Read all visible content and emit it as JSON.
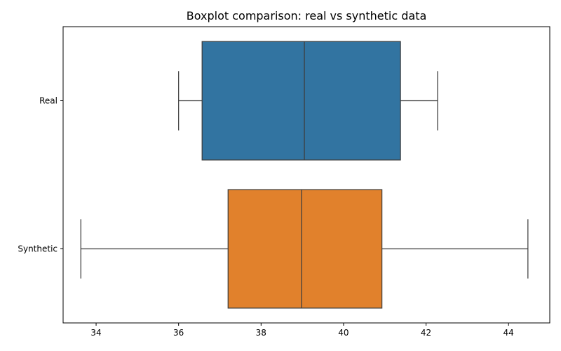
{
  "chart_data": {
    "type": "boxplot",
    "orientation": "horizontal",
    "title": "Boxplot comparison: real vs synthetic data",
    "xlabel": "",
    "ylabel": "",
    "xlim": [
      33.2,
      45.0
    ],
    "x_ticks": [
      34,
      36,
      38,
      40,
      42,
      44
    ],
    "grid": false,
    "series": [
      {
        "name": "Real",
        "color": "#3274a1",
        "whisker_low": 36.0,
        "q1": 36.57,
        "median": 39.05,
        "q3": 41.38,
        "whisker_high": 42.28
      },
      {
        "name": "Synthetic",
        "color": "#e1812c",
        "whisker_low": 33.63,
        "q1": 37.2,
        "median": 38.98,
        "q3": 40.93,
        "whisker_high": 44.47
      }
    ]
  }
}
